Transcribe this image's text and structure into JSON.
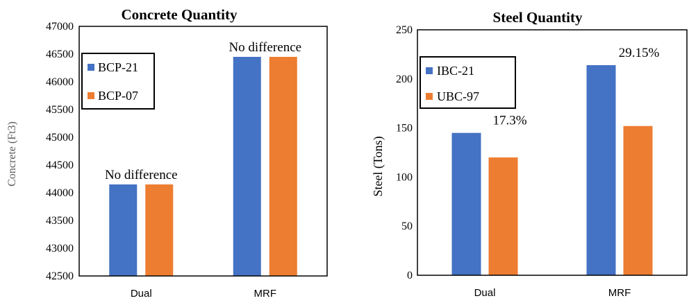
{
  "chart_data": [
    {
      "type": "bar",
      "title": "Concrete Quantity",
      "xlabel": "",
      "ylabel": "Concrete (Ft3)",
      "categories": [
        "Dual",
        "MRF"
      ],
      "ylim": [
        42500,
        47000
      ],
      "yticks": [
        42500,
        43000,
        43500,
        44000,
        44500,
        45000,
        45500,
        46000,
        46500,
        47000
      ],
      "series": [
        {
          "name": "BCP-21",
          "color": "#4472C4",
          "values": [
            44150,
            46450
          ]
        },
        {
          "name": "BCP-07",
          "color": "#ED7D31",
          "values": [
            44150,
            46450
          ]
        }
      ],
      "annotations": [
        "No difference",
        "No difference"
      ],
      "legend": "top-left",
      "grid": false
    },
    {
      "type": "bar",
      "title": "Steel Quantity",
      "xlabel": "",
      "ylabel": "Steel (Tons)",
      "categories": [
        "Dual",
        "MRF"
      ],
      "ylim": [
        0,
        250
      ],
      "yticks": [
        0,
        50,
        100,
        150,
        200,
        250
      ],
      "series": [
        {
          "name": "IBC-21",
          "color": "#4472C4",
          "values": [
            145,
            214
          ]
        },
        {
          "name": "UBC-97",
          "color": "#ED7D31",
          "values": [
            120,
            152
          ]
        }
      ],
      "annotations": [
        "17.3%",
        "29.15%"
      ],
      "legend": "top-left",
      "grid": false
    }
  ]
}
